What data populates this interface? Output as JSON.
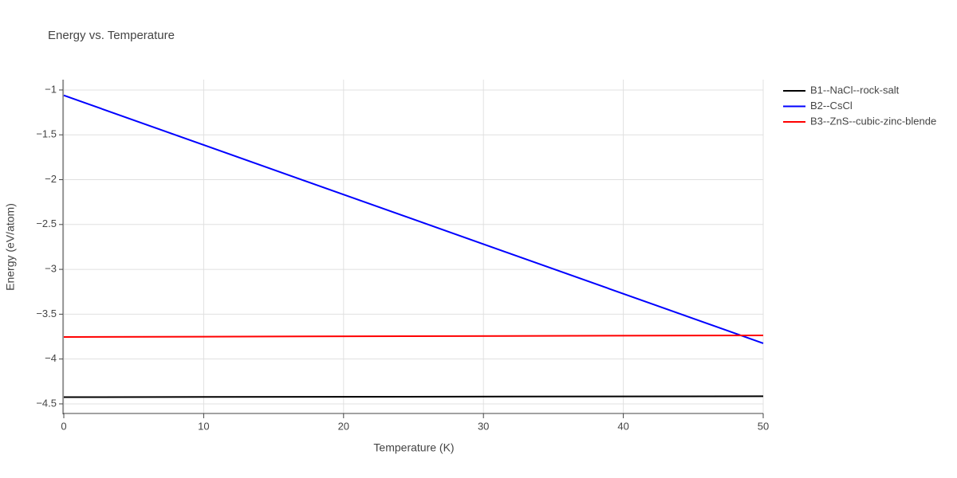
{
  "chart_data": {
    "type": "line",
    "title": "Energy vs. Temperature",
    "x_label": "Temperature (K)",
    "y_label": "Energy (eV/atom)",
    "x": [
      0,
      50
    ],
    "series": [
      {
        "name": "B1--NaCl--rock-salt",
        "color": "#000000",
        "values": [
          -4.425,
          -4.415
        ]
      },
      {
        "name": "B2--CsCl",
        "color": "#0000ff",
        "values": [
          -1.06,
          -3.825
        ]
      },
      {
        "name": "B3--ZnS--cubic-zinc-blende",
        "color": "#ff0000",
        "values": [
          -3.754,
          -3.736
        ]
      }
    ],
    "xlim": [
      0,
      50
    ],
    "xticks": [
      0,
      10,
      20,
      30,
      40,
      50
    ],
    "ylim": [
      -4.607,
      -0.885
    ],
    "yticks": [
      {
        "value": -1,
        "label": "−1"
      },
      {
        "value": -1.5,
        "label": "−1.5"
      },
      {
        "value": -2,
        "label": "−2"
      },
      {
        "value": -2.5,
        "label": "−2.5"
      },
      {
        "value": -3,
        "label": "−3"
      },
      {
        "value": -3.5,
        "label": "−3.5"
      },
      {
        "value": -4,
        "label": "−4"
      },
      {
        "value": -4.5,
        "label": "−4.5"
      }
    ],
    "grid": true,
    "legend": "right"
  }
}
